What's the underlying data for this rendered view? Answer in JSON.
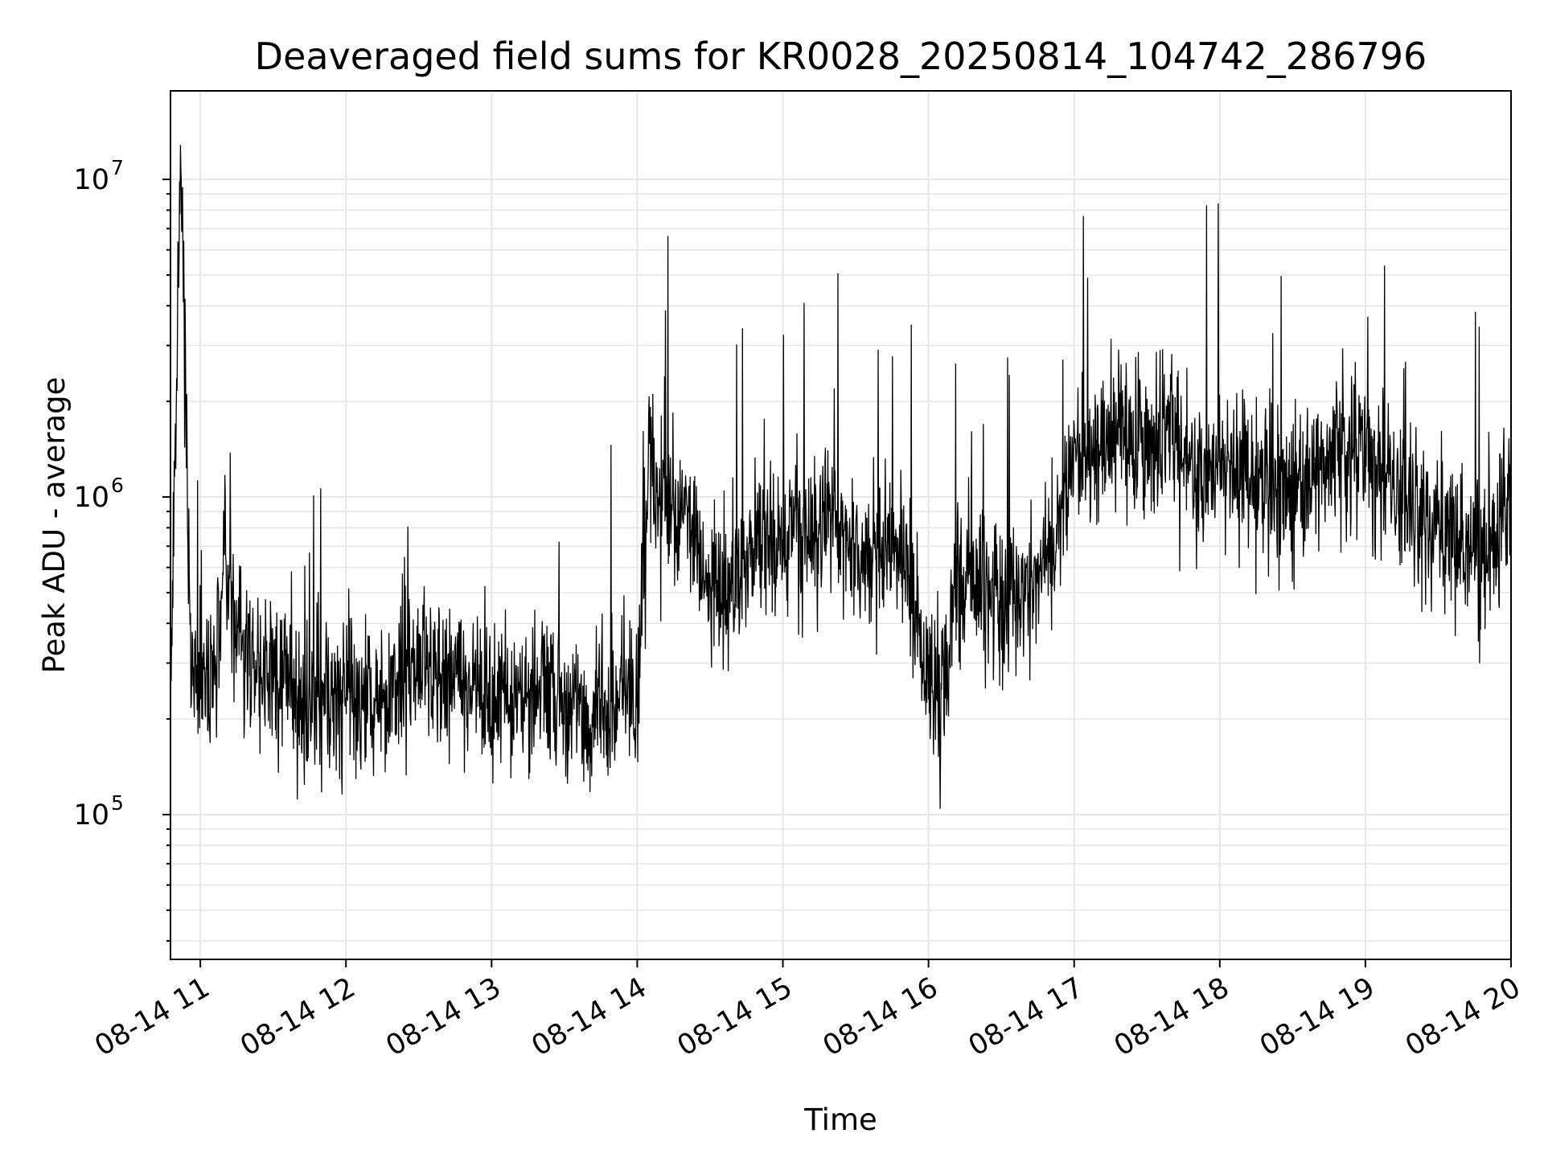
{
  "chart_data": {
    "type": "line",
    "title": "Deaveraged field sums for KR0028_20250814_104742_286796",
    "xlabel": "Time",
    "ylabel": "Peak ADU - average",
    "x_range": [
      "2025-08-14 10:47:42",
      "2025-08-14 20:00:00"
    ],
    "x_tick_labels": [
      "08-14 11",
      "08-14 12",
      "08-14 13",
      "08-14 14",
      "08-14 15",
      "08-14 16",
      "08-14 17",
      "08-14 18",
      "08-14 19",
      "08-14 20"
    ],
    "y_scale": "log",
    "ylim": [
      35000,
      19000000
    ],
    "y_tick_labels": [
      {
        "base": "10",
        "exponent": "5",
        "value": 100000
      },
      {
        "base": "10",
        "exponent": "6",
        "value": 1000000
      },
      {
        "base": "10",
        "exponent": "7",
        "value": 10000000
      }
    ],
    "grid": true,
    "line_color": "#000000",
    "grid_color": "#e6e6e6",
    "series": [
      {
        "x": [
          "2025-08-14 10:48",
          "2025-08-14 10:52",
          "2025-08-14 10:56",
          "2025-08-14 11:00",
          "2025-08-14 11:05",
          "2025-08-14 11:10",
          "2025-08-14 11:15",
          "2025-08-14 11:20",
          "2025-08-14 11:30",
          "2025-08-14 11:40",
          "2025-08-14 11:50",
          "2025-08-14 12:00",
          "2025-08-14 12:10",
          "2025-08-14 12:20",
          "2025-08-14 12:30",
          "2025-08-14 12:40",
          "2025-08-14 12:50",
          "2025-08-14 13:00",
          "2025-08-14 13:10",
          "2025-08-14 13:20",
          "2025-08-14 13:30",
          "2025-08-14 13:40",
          "2025-08-14 13:50",
          "2025-08-14 14:00",
          "2025-08-14 14:05",
          "2025-08-14 14:10",
          "2025-08-14 14:20",
          "2025-08-14 14:30",
          "2025-08-14 14:40",
          "2025-08-14 14:50",
          "2025-08-14 15:00",
          "2025-08-14 15:10",
          "2025-08-14 15:20",
          "2025-08-14 15:30",
          "2025-08-14 15:40",
          "2025-08-14 15:50",
          "2025-08-14 16:00",
          "2025-08-14 16:05",
          "2025-08-14 16:10",
          "2025-08-14 16:20",
          "2025-08-14 16:30",
          "2025-08-14 16:40",
          "2025-08-14 16:50",
          "2025-08-14 17:00",
          "2025-08-14 17:10",
          "2025-08-14 17:20",
          "2025-08-14 17:30",
          "2025-08-14 17:40",
          "2025-08-14 17:50",
          "2025-08-14 18:00",
          "2025-08-14 18:10",
          "2025-08-14 18:20",
          "2025-08-14 18:30",
          "2025-08-14 18:40",
          "2025-08-14 18:50",
          "2025-08-14 19:00",
          "2025-08-14 19:10",
          "2025-08-14 19:20",
          "2025-08-14 19:30",
          "2025-08-14 19:40",
          "2025-08-14 19:50",
          "2025-08-14 20:00"
        ],
        "y": [
          300000,
          14000000,
          250000,
          300000,
          250000,
          650000,
          400000,
          300000,
          270000,
          230000,
          220000,
          250000,
          220000,
          230000,
          300000,
          270000,
          250000,
          250000,
          230000,
          240000,
          220000,
          200000,
          210000,
          250000,
          1200000,
          1000000,
          900000,
          500000,
          550000,
          700000,
          750000,
          800000,
          850000,
          700000,
          650000,
          700000,
          300000,
          200000,
          500000,
          600000,
          450000,
          500000,
          700000,
          1300000,
          1500000,
          1700000,
          1400000,
          1600000,
          1100000,
          1300000,
          1200000,
          1100000,
          1000000,
          1300000,
          1400000,
          1500000,
          1100000,
          900000,
          800000,
          700000,
          650000,
          1000000
        ]
      }
    ]
  }
}
